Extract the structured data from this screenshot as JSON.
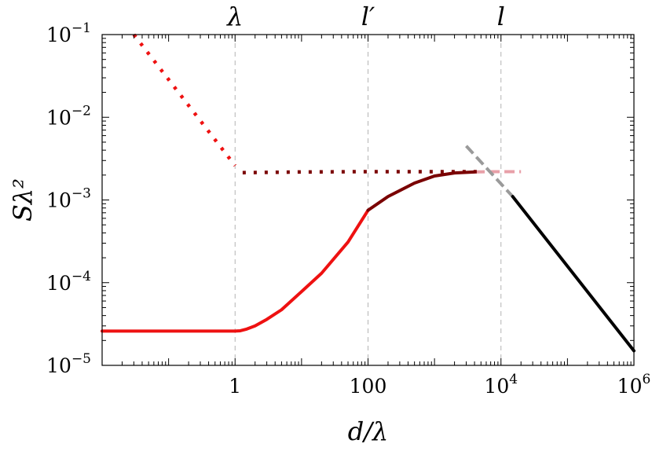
{
  "chart_data": {
    "type": "line",
    "xlabel": "d/λ",
    "ylabel": "Sλ²",
    "xscale": "log",
    "yscale": "log",
    "xlim": [
      0.01,
      1000000
    ],
    "ylim": [
      1e-05,
      0.1
    ],
    "frame": true,
    "grid": false,
    "colors": {
      "red": "#ee1111",
      "dark_red": "#7a0000",
      "pink": "#e8a0a8",
      "gray": "#9a9a9a",
      "black": "#000000",
      "guide": "#b4b4b4"
    },
    "x_ticks": [
      {
        "value": 1,
        "label": "1"
      },
      {
        "value": 100,
        "label": "100"
      },
      {
        "value": 10000,
        "base": "10",
        "exp": "4"
      },
      {
        "value": 1000000,
        "base": "10",
        "exp": "6"
      }
    ],
    "y_ticks": [
      {
        "value": 0.1,
        "base": "10",
        "exp": "−1"
      },
      {
        "value": 0.01,
        "base": "10",
        "exp": "−2"
      },
      {
        "value": 0.001,
        "base": "10",
        "exp": "−3"
      },
      {
        "value": 0.0001,
        "base": "10",
        "exp": "−4"
      },
      {
        "value": 1e-05,
        "base": "10",
        "exp": "−5"
      }
    ],
    "vertical_markers": [
      {
        "x": 1,
        "label": "λ"
      },
      {
        "x": 100,
        "label": "l′"
      },
      {
        "x": 10000,
        "label": "l"
      }
    ],
    "series": [
      {
        "style": "solid",
        "color_key": "red",
        "x": [
          0.01,
          0.1,
          0.5,
          1,
          1.2,
          1.5,
          2,
          3,
          5,
          10,
          20,
          50,
          100
        ],
        "y": [
          2.6e-05,
          2.6e-05,
          2.6e-05,
          2.6e-05,
          2.62e-05,
          2.75e-05,
          3e-05,
          3.6e-05,
          4.7e-05,
          7.8e-05,
          0.00013,
          0.00031,
          0.00075
        ]
      },
      {
        "style": "solid",
        "color_key": "dark_red",
        "x": [
          100,
          200,
          500,
          1000,
          2000,
          4000
        ],
        "y": [
          0.00075,
          0.0011,
          0.0016,
          0.00195,
          0.00212,
          0.00218
        ]
      },
      {
        "style": "dashed",
        "color_key": "pink",
        "x": [
          4000,
          8000,
          20000
        ],
        "y": [
          0.00218,
          0.0022,
          0.0022
        ]
      },
      {
        "style": "dotted",
        "color_key": "red",
        "x": [
          0.03,
          1
        ],
        "y": [
          0.1,
          0.0026
        ]
      },
      {
        "style": "dotted",
        "color_key": "dark_red",
        "x": [
          1.3,
          10,
          100,
          1000,
          5000
        ],
        "y": [
          0.00214,
          0.00218,
          0.0022,
          0.0022,
          0.0022
        ]
      },
      {
        "style": "dashed",
        "color_key": "gray",
        "x": [
          3000,
          15000
        ],
        "y": [
          0.0045,
          0.0011
        ]
      },
      {
        "style": "solid",
        "color_key": "black",
        "x": [
          15000,
          1000000
        ],
        "y": [
          0.0011,
          1.5e-05
        ]
      }
    ]
  }
}
